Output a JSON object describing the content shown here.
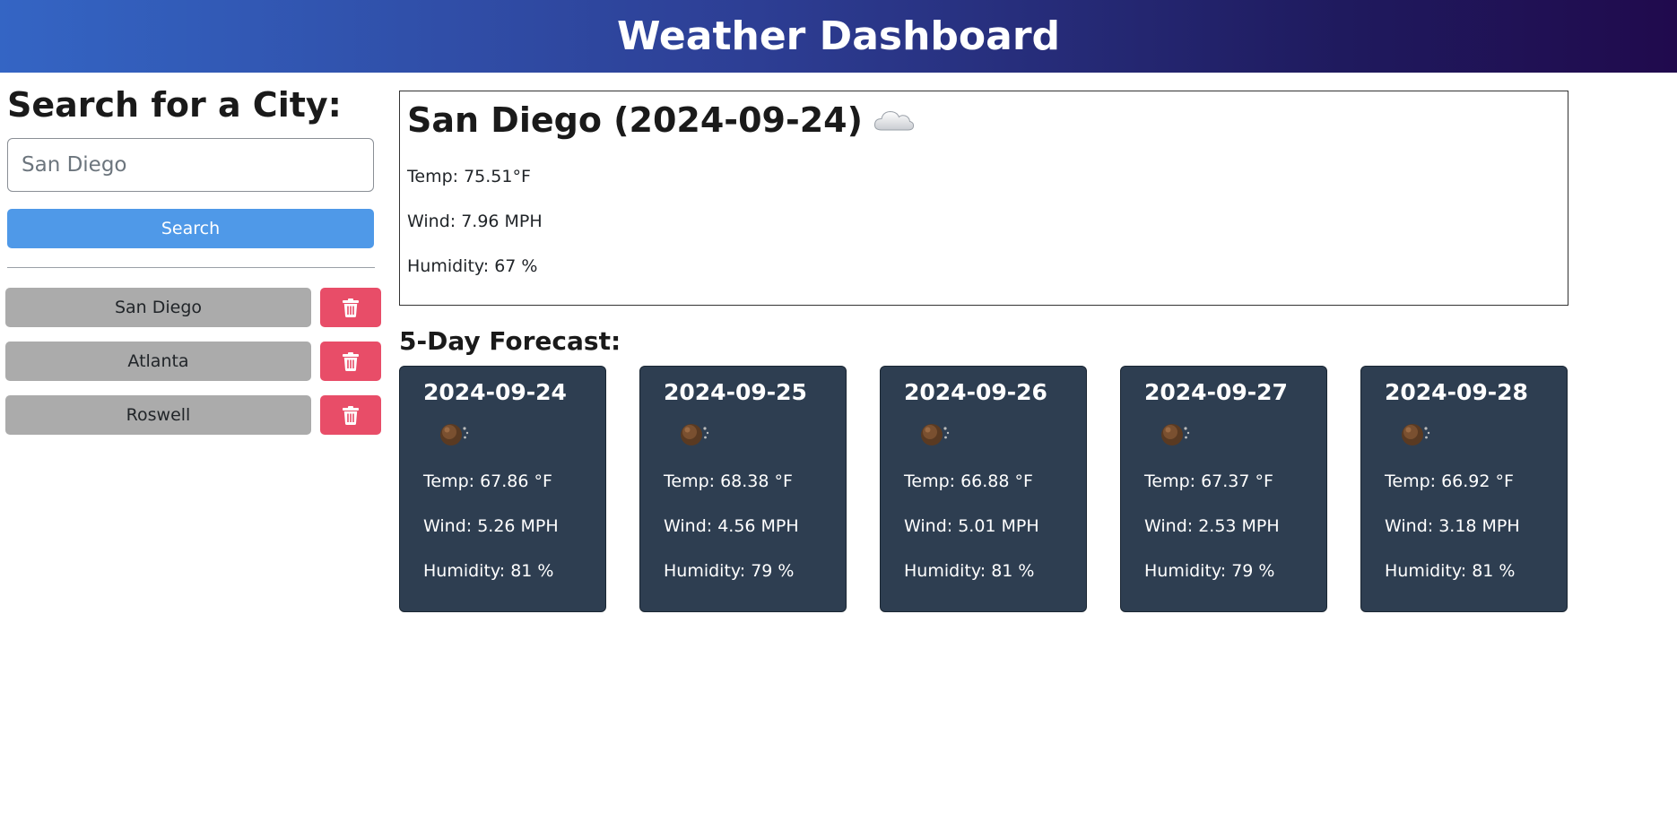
{
  "header": {
    "title": "Weather Dashboard"
  },
  "sidebar": {
    "heading": "Search for a City:",
    "search": {
      "value": "",
      "placeholder": "San Diego"
    },
    "search_label": "Search",
    "history": [
      {
        "label": "San Diego"
      },
      {
        "label": "Atlanta"
      },
      {
        "label": "Roswell"
      }
    ]
  },
  "current": {
    "title": "San Diego (2024-09-24)",
    "icon": "cloud-icon",
    "temp": "Temp: 75.51°F",
    "wind": "Wind: 7.96 MPH",
    "humidity": "Humidity: 67 %"
  },
  "forecast": {
    "heading": "5-Day Forecast:",
    "days": [
      {
        "date": "2024-09-24",
        "icon": "weather-icon",
        "temp": "Temp: 67.86 °F",
        "wind": "Wind: 5.26 MPH",
        "humidity": "Humidity: 81 %"
      },
      {
        "date": "2024-09-25",
        "icon": "weather-icon",
        "temp": "Temp: 68.38 °F",
        "wind": "Wind: 4.56 MPH",
        "humidity": "Humidity: 79 %"
      },
      {
        "date": "2024-09-26",
        "icon": "weather-icon",
        "temp": "Temp: 66.88 °F",
        "wind": "Wind: 5.01 MPH",
        "humidity": "Humidity: 81 %"
      },
      {
        "date": "2024-09-27",
        "icon": "weather-icon",
        "temp": "Temp: 67.37 °F",
        "wind": "Wind: 2.53 MPH",
        "humidity": "Humidity: 79 %"
      },
      {
        "date": "2024-09-28",
        "icon": "weather-icon",
        "temp": "Temp: 66.92 °F",
        "wind": "Wind: 3.18 MPH",
        "humidity": "Humidity: 81 %"
      }
    ]
  },
  "colors": {
    "search_button": "#4f99e8",
    "city_button": "#ababab",
    "delete_button": "#e84d68",
    "forecast_card": "#2e3e51"
  }
}
